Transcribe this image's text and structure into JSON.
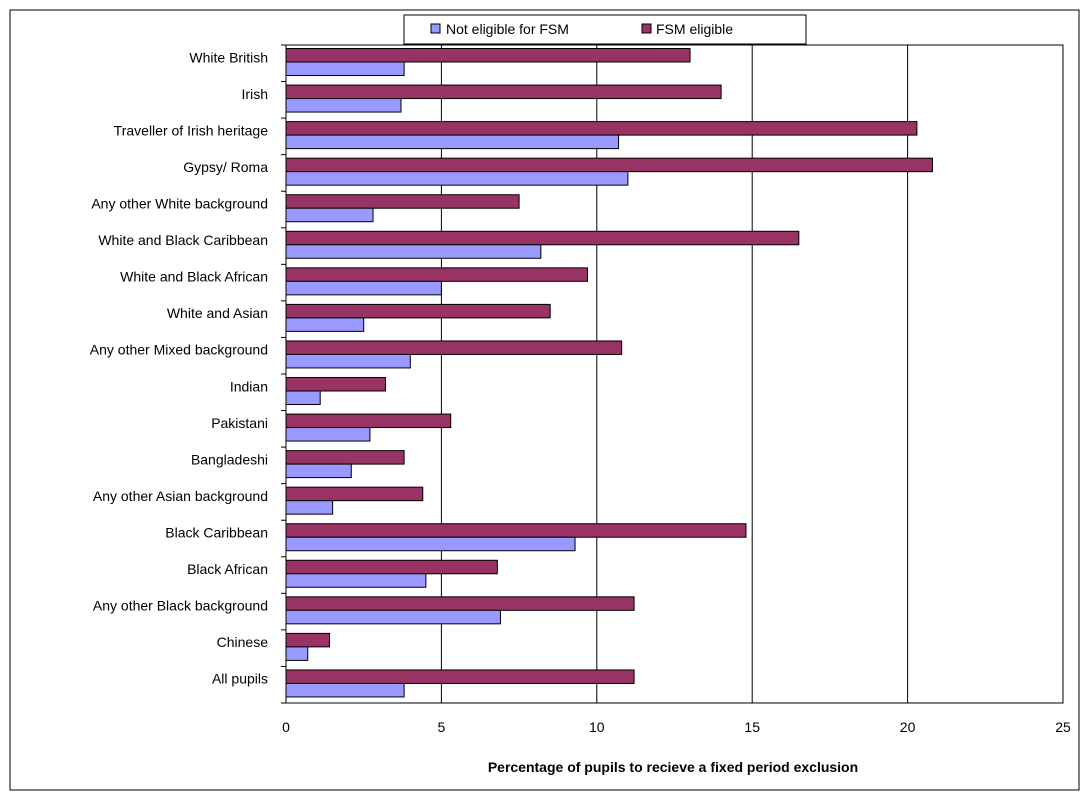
{
  "chart_data": {
    "type": "bar",
    "orientation": "horizontal",
    "xlabel": "Percentage of pupils to recieve a fixed period exclusion",
    "xlim": [
      0,
      25
    ],
    "xticks": [
      0,
      5,
      10,
      15,
      20,
      25
    ],
    "grid": "vertical major gridlines",
    "legend_position": "top-center",
    "categories": [
      "White British",
      "Irish",
      "Traveller of Irish heritage",
      "Gypsy/ Roma",
      "Any other White background",
      "White and Black Caribbean",
      "White and Black African",
      "White and Asian",
      "Any other Mixed background",
      "Indian",
      "Pakistani",
      "Bangladeshi",
      "Any other Asian background",
      "Black Caribbean",
      "Black African",
      "Any other Black background",
      "Chinese",
      "All pupils"
    ],
    "series": [
      {
        "name": "Not eligible for FSM",
        "color": "#9999ff",
        "values": [
          3.8,
          3.7,
          10.7,
          11.0,
          2.8,
          8.2,
          5.0,
          2.5,
          4.0,
          1.1,
          2.7,
          2.1,
          1.5,
          9.3,
          4.5,
          6.9,
          0.7,
          3.8
        ]
      },
      {
        "name": "FSM eligible",
        "color": "#993366",
        "values": [
          13.0,
          14.0,
          20.3,
          20.8,
          7.5,
          16.5,
          9.7,
          8.5,
          10.8,
          3.2,
          5.3,
          3.8,
          4.4,
          14.8,
          6.8,
          11.2,
          1.4,
          11.2
        ]
      }
    ]
  }
}
